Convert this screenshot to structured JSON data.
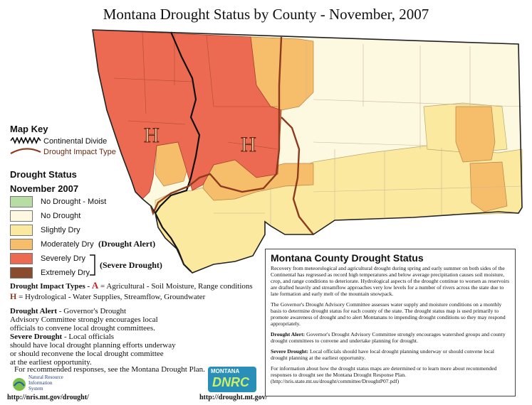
{
  "title": "Montana Drought Status by County - November, 2007",
  "map_key": {
    "heading": "Map Key",
    "continental_divide": "Continental Divide",
    "drought_impact_type": "Drought Impact Type"
  },
  "drought_status": {
    "heading": "Drought Status",
    "subheading": "November 2007",
    "items": [
      {
        "label": "No Drought - Moist",
        "color": "#b7dca4"
      },
      {
        "label": "No Drought",
        "color": "#fdf8e0"
      },
      {
        "label": "Slightly Dry",
        "color": "#fbe9a0"
      },
      {
        "label": "Moderately Dry",
        "color": "#f6bd6b"
      },
      {
        "label": "Severely Dry",
        "color": "#ec6a52"
      },
      {
        "label": "Extremely Dry",
        "color": "#8a4a2e"
      }
    ],
    "drought_alert_label": "(Drought Alert)",
    "severe_drought_label": "(Severe Drought)"
  },
  "impact_types": {
    "heading": "Drought Impact Types -",
    "a_symbol": "A",
    "a_text": "= Agricultural - Soil Moisture, Range conditions",
    "h_symbol": "H",
    "h_text": "= Hydrological - Water Supplies, Streamflow, Groundwater"
  },
  "notes": {
    "alert_title": "Drought Alert",
    "alert_title_rest": "- Governor's Drought",
    "alert_body_1": "Advisory Committee strongly encourages local",
    "alert_body_2": "officials to convene local drought committees.",
    "severe_title": "Severe Drought",
    "severe_title_rest": "- Local officials",
    "severe_body_1": "should have local drought planning efforts underway",
    "severe_body_2": "or should reconvene the local drought committee",
    "severe_body_3": "at the earliest opportunity.",
    "recommend": "For recommended responses, see the Montana Drought Plan."
  },
  "map_labels": {
    "h1": "H",
    "h2": "H"
  },
  "logos": {
    "nris_1": "Natural Resource",
    "nris_2": "Information",
    "nris_3": "System",
    "drc": "DNRC",
    "montana": "MONTANA"
  },
  "urls": {
    "nris": "http://nris.mt.gov/drought/",
    "drought": "http://drought.mt.gov/"
  },
  "info": {
    "heading": "Montana County Drought Status",
    "p1": "Recovery from meteorological and agricultural drought during spring and early summer on both sides of the Continental has regressed as record high temperatures and below average precipitation causes soil moisture, crop, and range conditions to deteriorate. Hydrological aspects of the drought continue to worsen as reservoirs are drafted heavily and streamflow approaches very low levels for a number of rivers across the state due to late formation and early melt of the mountain snowpack.",
    "p2": "The Governor's Drought Advisory Committee assesses water supply and moisture conditions on a monthly basis to determine drought status for each county of the state. The drought status map is used primarily to promote awareness of drought and to alert Montanans to impending drought conditions so they may respond appropriately.",
    "p3_label": "Drought Alert:",
    "p3": "Governor's Drought Advisory Committee strongly encourages watershed groups and county drought committees to convene and undertake planning for drought.",
    "p4_label": "Severe Drought:",
    "p4": "Local officials should have local drought planning underway or should convene local drought planning at the earliest opportunity.",
    "p5": "For information about how the drought status maps are determined or to learn more about recommended responses to drought see the Montana Drought Response Plan. (http://nris.state.mt.us/drought/committee/DroughtP07.pdf)"
  }
}
